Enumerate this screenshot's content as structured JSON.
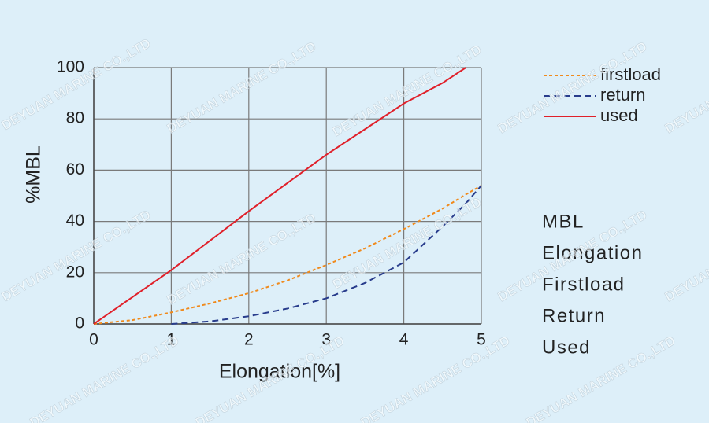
{
  "chart_data": {
    "type": "line",
    "x": [
      0,
      0.5,
      1,
      1.5,
      2,
      2.5,
      3,
      3.5,
      4,
      4.5,
      4.8,
      5
    ],
    "series": [
      {
        "name": "firstload",
        "color": "#f08a1c",
        "dash": "4 3",
        "values": [
          0,
          1.5,
          4.5,
          8,
          12,
          17,
          23,
          29.5,
          37,
          45,
          50.5,
          54
        ]
      },
      {
        "name": "return",
        "color": "#283c8c",
        "dash": "8 5",
        "values": [
          null,
          null,
          0,
          1,
          3,
          6,
          10,
          16,
          24,
          38,
          47,
          54
        ]
      },
      {
        "name": "used",
        "color": "#e0202a",
        "dash": "none",
        "values": [
          0,
          10.5,
          21,
          32.5,
          44,
          55,
          66,
          76,
          86,
          94,
          100,
          null
        ]
      }
    ],
    "x_label": "Elongation[%]",
    "y_label": "%MBL",
    "xlim": [
      0,
      5
    ],
    "xticks": [
      0,
      1,
      2,
      3,
      4,
      5
    ],
    "ylim": [
      0,
      100
    ],
    "yticks": [
      0,
      20,
      40,
      60,
      80,
      100
    ],
    "grid": true,
    "legend": "right",
    "annotations": [
      "MBL",
      "Elongation",
      "Firstload",
      "Return",
      "Used"
    ],
    "watermark": "DEYUAN MARINE CO.,LTD"
  }
}
